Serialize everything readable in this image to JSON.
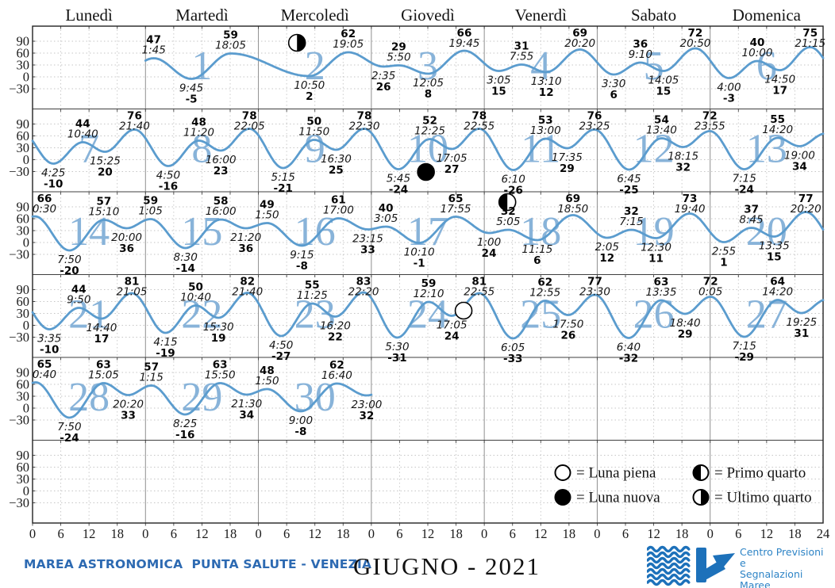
{
  "header": {
    "weekdays": [
      "Lunedì",
      "Martedì",
      "Mercoledì",
      "Giovedì",
      "Venerdì",
      "Sabato",
      "Domenica"
    ]
  },
  "footer": {
    "station": "MAREA ASTRONOMICA  PUNTA SALUTE - VENEZIA",
    "month_title": "GIUGNO - 2021",
    "logo": {
      "line1": "Centro Previsioni",
      "line2": "e",
      "line3": "Segnalazioni Maree"
    }
  },
  "legend": [
    {
      "phase": "luna-piena",
      "label": "= Luna piena"
    },
    {
      "phase": "luna-nuova",
      "label": "= Luna nuova"
    },
    {
      "phase": "primo-quarto",
      "label": "= Primo quarto"
    },
    {
      "phase": "ultimo-quarto",
      "label": "= Ultimo quarto"
    }
  ],
  "colors": {
    "curve": "#5b9cce",
    "day_number": "#88b3d9",
    "grid_dashed": "#c6c6c6",
    "grid_day": "#8f8f8f",
    "grid_row": "#3f3f3f",
    "frame": "#222222",
    "station_text": "#2d6ab2",
    "logo_blue": "#1d71ba",
    "logo_text_blue": "#2e84c6"
  },
  "chart_data": {
    "type": "line",
    "title": "GIUGNO - 2021",
    "ylabel_ticks": [
      90,
      60,
      30,
      0,
      -30
    ],
    "x_hour_ticks": [
      0,
      6,
      12,
      18
    ],
    "x_end_tick": 24,
    "units": {
      "height": "cm",
      "time": "h"
    },
    "weeks": [
      {
        "start_col": 1,
        "days": [
          1,
          2,
          3,
          4,
          5,
          6
        ]
      },
      {
        "start_col": 0,
        "days": [
          7,
          8,
          9,
          10,
          11,
          12,
          13
        ]
      },
      {
        "start_col": 0,
        "days": [
          14,
          15,
          16,
          17,
          18,
          19,
          20
        ]
      },
      {
        "start_col": 0,
        "days": [
          21,
          22,
          23,
          24,
          25,
          26,
          27
        ]
      },
      {
        "start_col": 0,
        "days": [
          28,
          29,
          30
        ]
      }
    ],
    "moons": [
      {
        "day": 2,
        "phase": "ultimo-quarto",
        "hour": 8.2,
        "value": 86
      },
      {
        "day": 10,
        "phase": "luna-nuova",
        "hour": 11.6,
        "value": -31
      },
      {
        "day": 18,
        "phase": "primo-quarto",
        "hour": 4.9,
        "value": 102
      },
      {
        "day": 24,
        "phase": "luna-piena",
        "hour": 19.6,
        "value": 37
      }
    ],
    "days": [
      {
        "day": 1,
        "extremes": [
          {
            "time": "1:45",
            "value": 47,
            "type": "H"
          },
          {
            "time": "9:45",
            "value": -5,
            "type": "L"
          },
          {
            "time": "18:05",
            "value": 59,
            "type": "H"
          }
        ]
      },
      {
        "day": 2,
        "extremes": [
          {
            "time": "10:50",
            "value": 2,
            "type": "L"
          },
          {
            "time": "19:05",
            "value": 62,
            "type": "H"
          }
        ]
      },
      {
        "day": 3,
        "extremes": [
          {
            "time": "2:35",
            "value": 26,
            "type": "L"
          },
          {
            "time": "5:50",
            "value": 29,
            "type": "H"
          },
          {
            "time": "12:05",
            "value": 8,
            "type": "L"
          },
          {
            "time": "19:45",
            "value": 66,
            "type": "H"
          }
        ]
      },
      {
        "day": 4,
        "extremes": [
          {
            "time": "3:05",
            "value": 15,
            "type": "L"
          },
          {
            "time": "7:55",
            "value": 31,
            "type": "H"
          },
          {
            "time": "13:10",
            "value": 12,
            "type": "L"
          },
          {
            "time": "20:20",
            "value": 69,
            "type": "H"
          }
        ]
      },
      {
        "day": 5,
        "extremes": [
          {
            "time": "3:30",
            "value": 6,
            "type": "L"
          },
          {
            "time": "9:10",
            "value": 36,
            "type": "H"
          },
          {
            "time": "14:05",
            "value": 15,
            "type": "L"
          },
          {
            "time": "20:50",
            "value": 72,
            "type": "H"
          }
        ]
      },
      {
        "day": 6,
        "extremes": [
          {
            "time": "4:00",
            "value": -3,
            "type": "L"
          },
          {
            "time": "10:00",
            "value": 40,
            "type": "H"
          },
          {
            "time": "14:50",
            "value": 17,
            "type": "L"
          },
          {
            "time": "21:15",
            "value": 75,
            "type": "H"
          }
        ]
      },
      {
        "day": 7,
        "extremes": [
          {
            "time": "4:25",
            "value": -10,
            "type": "L"
          },
          {
            "time": "10:40",
            "value": 44,
            "type": "H"
          },
          {
            "time": "15:25",
            "value": 20,
            "type": "L"
          },
          {
            "time": "21:40",
            "value": 76,
            "type": "H"
          }
        ]
      },
      {
        "day": 8,
        "extremes": [
          {
            "time": "4:50",
            "value": -16,
            "type": "L"
          },
          {
            "time": "11:20",
            "value": 48,
            "type": "H"
          },
          {
            "time": "16:00",
            "value": 23,
            "type": "L"
          },
          {
            "time": "22:05",
            "value": 78,
            "type": "H"
          }
        ]
      },
      {
        "day": 9,
        "extremes": [
          {
            "time": "5:15",
            "value": -21,
            "type": "L"
          },
          {
            "time": "11:50",
            "value": 50,
            "type": "H"
          },
          {
            "time": "16:30",
            "value": 25,
            "type": "L"
          },
          {
            "time": "22:30",
            "value": 78,
            "type": "H"
          }
        ]
      },
      {
        "day": 10,
        "extremes": [
          {
            "time": "5:45",
            "value": -24,
            "type": "L"
          },
          {
            "time": "12:25",
            "value": 52,
            "type": "H"
          },
          {
            "time": "17:05",
            "value": 27,
            "type": "L"
          },
          {
            "time": "22:55",
            "value": 78,
            "type": "H"
          }
        ]
      },
      {
        "day": 11,
        "extremes": [
          {
            "time": "6:10",
            "value": -26,
            "type": "L"
          },
          {
            "time": "13:00",
            "value": 53,
            "type": "H"
          },
          {
            "time": "17:35",
            "value": 29,
            "type": "L"
          },
          {
            "time": "23:25",
            "value": 76,
            "type": "H"
          }
        ]
      },
      {
        "day": 12,
        "extremes": [
          {
            "time": "6:45",
            "value": -25,
            "type": "L"
          },
          {
            "time": "13:40",
            "value": 54,
            "type": "H"
          },
          {
            "time": "18:15",
            "value": 32,
            "type": "L"
          },
          {
            "time": "23:55",
            "value": 72,
            "type": "H"
          }
        ]
      },
      {
        "day": 13,
        "extremes": [
          {
            "time": "7:15",
            "value": -24,
            "type": "L"
          },
          {
            "time": "14:20",
            "value": 55,
            "type": "H"
          },
          {
            "time": "19:00",
            "value": 34,
            "type": "L"
          }
        ]
      },
      {
        "day": 14,
        "extremes": [
          {
            "time": "0:30",
            "value": 66,
            "type": "H"
          },
          {
            "time": "7:50",
            "value": -20,
            "type": "L"
          },
          {
            "time": "15:10",
            "value": 57,
            "type": "H"
          },
          {
            "time": "20:00",
            "value": 36,
            "type": "L"
          }
        ]
      },
      {
        "day": 15,
        "extremes": [
          {
            "time": "1:05",
            "value": 59,
            "type": "H"
          },
          {
            "time": "8:30",
            "value": -14,
            "type": "L"
          },
          {
            "time": "16:00",
            "value": 58,
            "type": "H"
          },
          {
            "time": "21:20",
            "value": 36,
            "type": "L"
          }
        ]
      },
      {
        "day": 16,
        "extremes": [
          {
            "time": "1:50",
            "value": 49,
            "type": "H"
          },
          {
            "time": "9:15",
            "value": -8,
            "type": "L"
          },
          {
            "time": "17:00",
            "value": 61,
            "type": "H"
          },
          {
            "time": "23:15",
            "value": 33,
            "type": "L"
          }
        ]
      },
      {
        "day": 17,
        "extremes": [
          {
            "time": "3:05",
            "value": 40,
            "type": "H"
          },
          {
            "time": "10:10",
            "value": -1,
            "type": "L"
          },
          {
            "time": "17:55",
            "value": 65,
            "type": "H"
          }
        ]
      },
      {
        "day": 18,
        "extremes": [
          {
            "time": "1:00",
            "value": 24,
            "type": "L"
          },
          {
            "time": "5:05",
            "value": 32,
            "type": "H"
          },
          {
            "time": "11:15",
            "value": 6,
            "type": "L"
          },
          {
            "time": "18:50",
            "value": 69,
            "type": "H"
          }
        ]
      },
      {
        "day": 19,
        "extremes": [
          {
            "time": "2:05",
            "value": 12,
            "type": "L"
          },
          {
            "time": "7:15",
            "value": 32,
            "type": "H"
          },
          {
            "time": "12:30",
            "value": 11,
            "type": "L"
          },
          {
            "time": "19:40",
            "value": 73,
            "type": "H"
          }
        ]
      },
      {
        "day": 20,
        "extremes": [
          {
            "time": "2:55",
            "value": 1,
            "type": "L"
          },
          {
            "time": "8:45",
            "value": 37,
            "type": "H"
          },
          {
            "time": "13:35",
            "value": 15,
            "type": "L"
          },
          {
            "time": "20:20",
            "value": 77,
            "type": "H"
          }
        ]
      },
      {
        "day": 21,
        "extremes": [
          {
            "time": "3:35",
            "value": -10,
            "type": "L"
          },
          {
            "time": "9:50",
            "value": 44,
            "type": "H"
          },
          {
            "time": "14:40",
            "value": 17,
            "type": "L"
          },
          {
            "time": "21:05",
            "value": 81,
            "type": "H"
          }
        ]
      },
      {
        "day": 22,
        "extremes": [
          {
            "time": "4:15",
            "value": -19,
            "type": "L"
          },
          {
            "time": "10:40",
            "value": 50,
            "type": "H"
          },
          {
            "time": "15:30",
            "value": 19,
            "type": "L"
          },
          {
            "time": "21:40",
            "value": 82,
            "type": "H"
          }
        ]
      },
      {
        "day": 23,
        "extremes": [
          {
            "time": "4:50",
            "value": -27,
            "type": "L"
          },
          {
            "time": "11:25",
            "value": 55,
            "type": "H"
          },
          {
            "time": "16:20",
            "value": 22,
            "type": "L"
          },
          {
            "time": "22:20",
            "value": 83,
            "type": "H"
          }
        ]
      },
      {
        "day": 24,
        "extremes": [
          {
            "time": "5:30",
            "value": -31,
            "type": "L"
          },
          {
            "time": "12:10",
            "value": 59,
            "type": "H"
          },
          {
            "time": "17:05",
            "value": 24,
            "type": "L"
          },
          {
            "time": "22:55",
            "value": 81,
            "type": "H"
          }
        ]
      },
      {
        "day": 25,
        "extremes": [
          {
            "time": "6:05",
            "value": -33,
            "type": "L"
          },
          {
            "time": "12:55",
            "value": 62,
            "type": "H"
          },
          {
            "time": "17:50",
            "value": 26,
            "type": "L"
          },
          {
            "time": "23:30",
            "value": 77,
            "type": "H"
          }
        ]
      },
      {
        "day": 26,
        "extremes": [
          {
            "time": "6:40",
            "value": -32,
            "type": "L"
          },
          {
            "time": "13:35",
            "value": 63,
            "type": "H"
          },
          {
            "time": "18:40",
            "value": 29,
            "type": "L"
          }
        ]
      },
      {
        "day": 27,
        "extremes": [
          {
            "time": "0:05",
            "value": 72,
            "type": "H"
          },
          {
            "time": "7:15",
            "value": -29,
            "type": "L"
          },
          {
            "time": "14:20",
            "value": 64,
            "type": "H"
          },
          {
            "time": "19:25",
            "value": 31,
            "type": "L"
          }
        ]
      },
      {
        "day": 28,
        "extremes": [
          {
            "time": "0:40",
            "value": 65,
            "type": "H"
          },
          {
            "time": "7:50",
            "value": -24,
            "type": "L"
          },
          {
            "time": "15:05",
            "value": 63,
            "type": "H"
          },
          {
            "time": "20:20",
            "value": 33,
            "type": "L"
          }
        ]
      },
      {
        "day": 29,
        "extremes": [
          {
            "time": "1:15",
            "value": 57,
            "type": "H"
          },
          {
            "time": "8:25",
            "value": -16,
            "type": "L"
          },
          {
            "time": "15:50",
            "value": 63,
            "type": "H"
          },
          {
            "time": "21:30",
            "value": 34,
            "type": "L"
          }
        ]
      },
      {
        "day": 30,
        "extremes": [
          {
            "time": "1:50",
            "value": 48,
            "type": "H"
          },
          {
            "time": "9:00",
            "value": -8,
            "type": "L"
          },
          {
            "time": "16:40",
            "value": 62,
            "type": "H"
          },
          {
            "time": "23:00",
            "value": 32,
            "type": "L"
          }
        ]
      }
    ]
  }
}
